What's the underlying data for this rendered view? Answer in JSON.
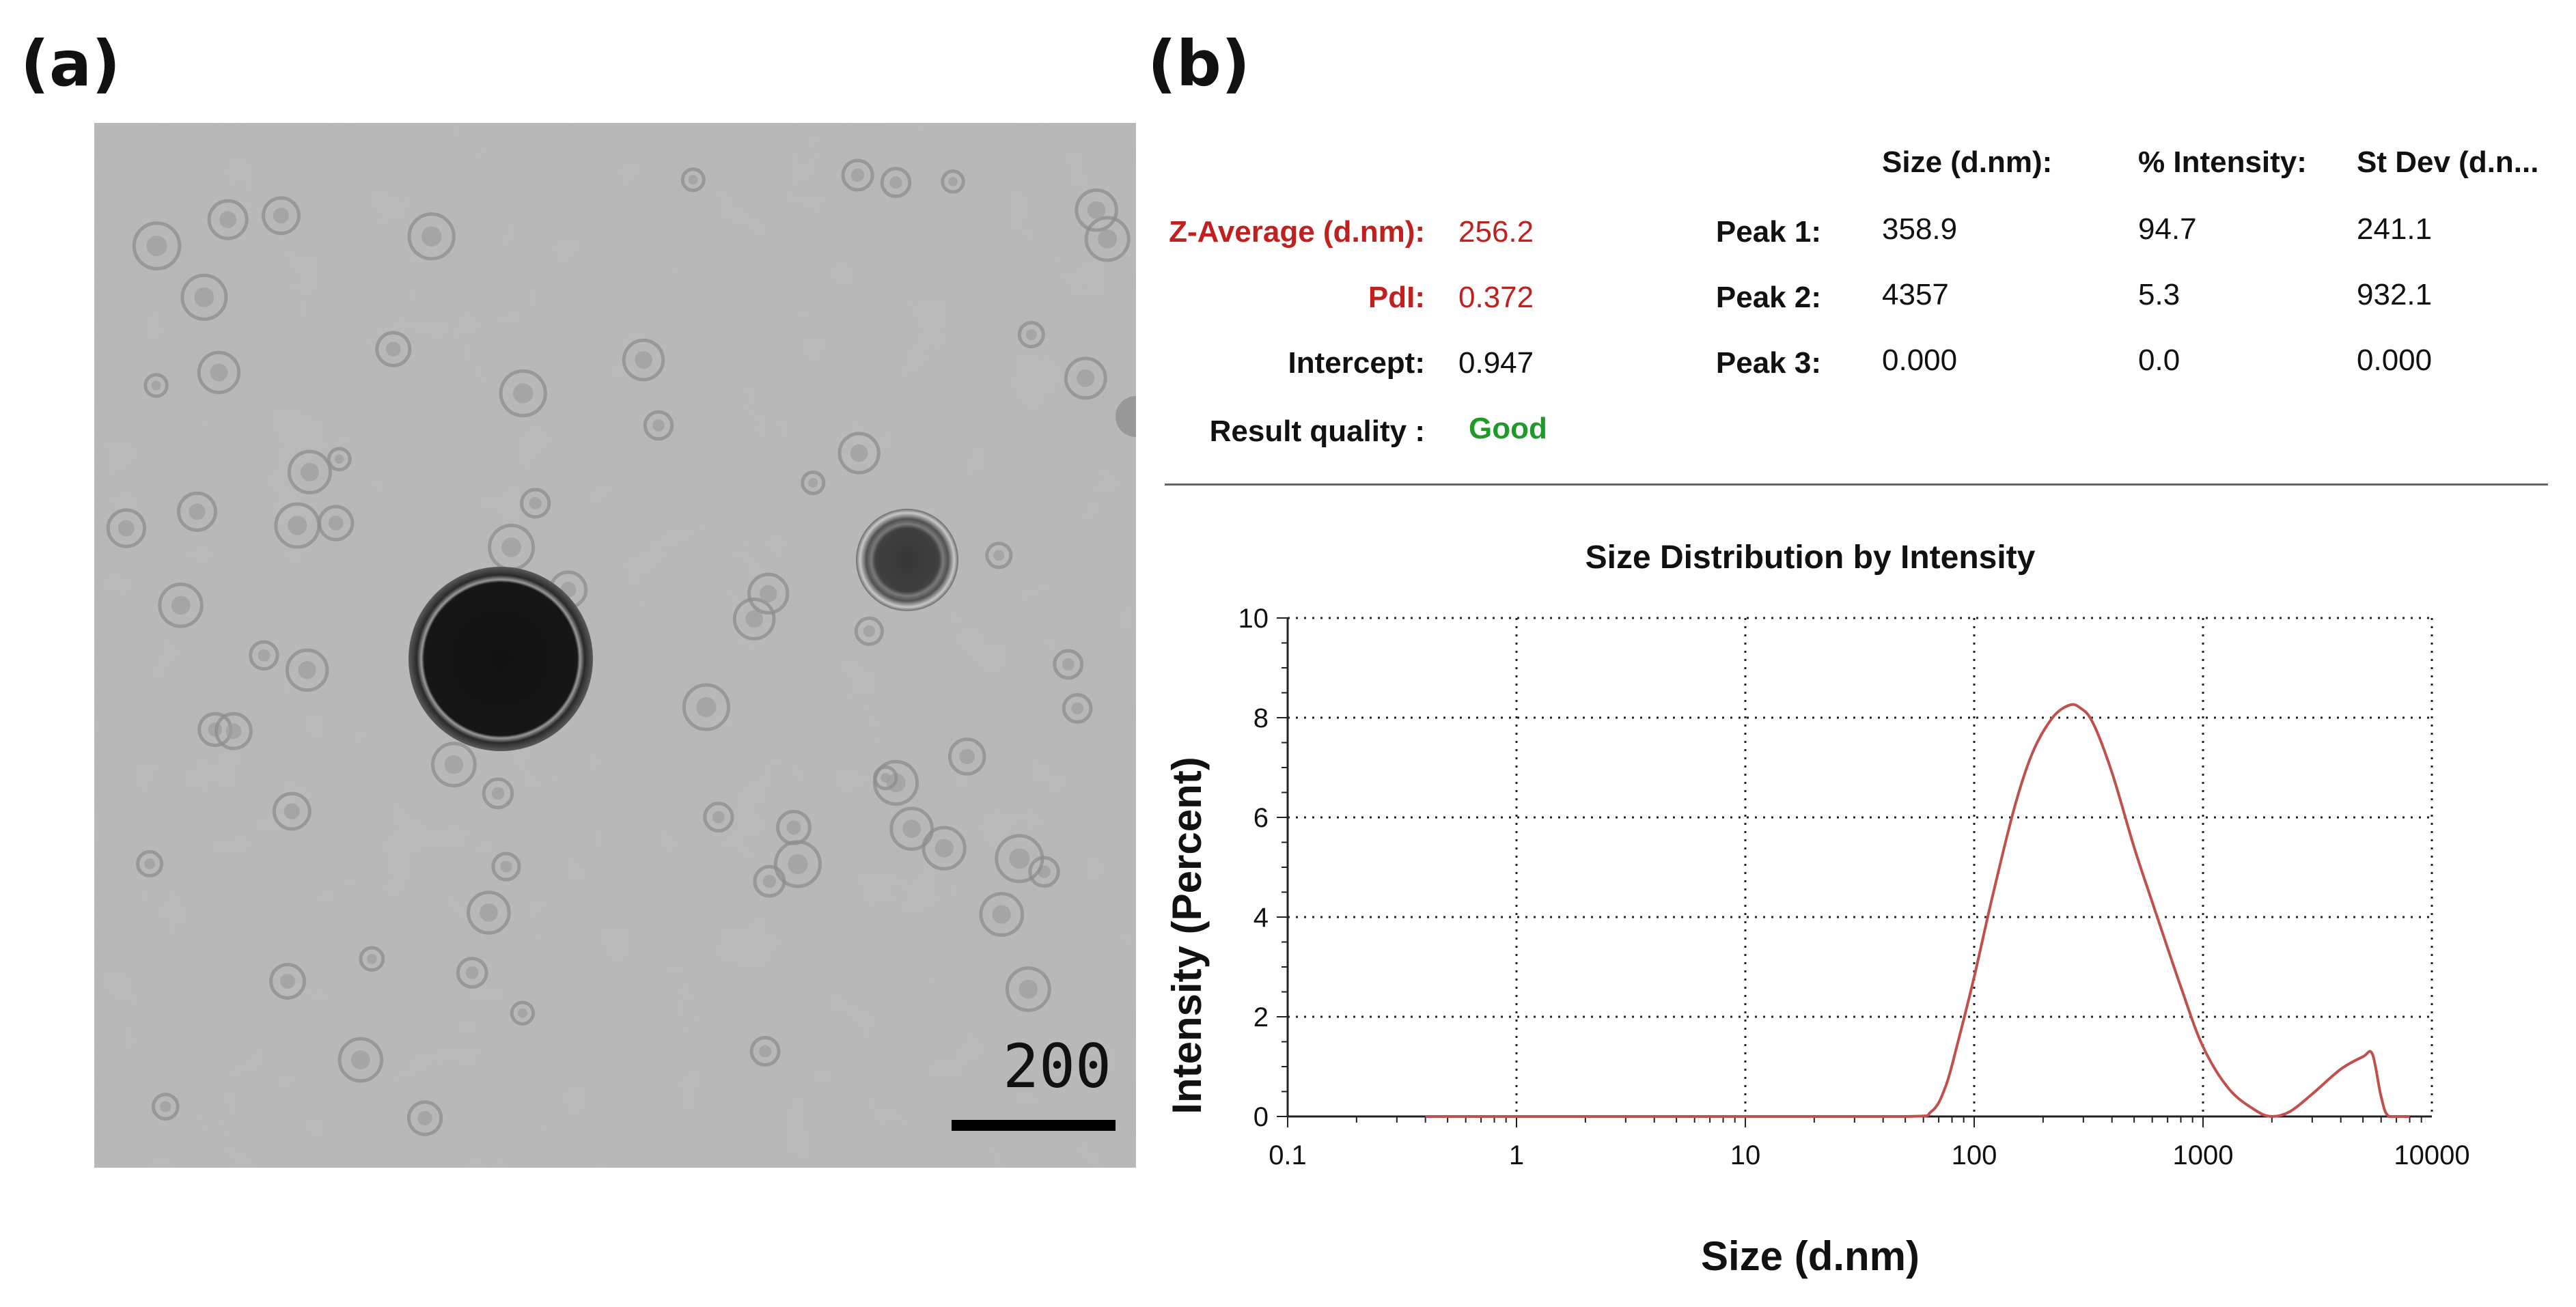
{
  "panels": {
    "a_label": "(a)",
    "b_label": "(b)"
  },
  "tem": {
    "scale_bar_label": "200 nm",
    "background_color": "#b8b8b8"
  },
  "summary": {
    "headers": {
      "size": "Size (d.nm):",
      "intensity": "% Intensity:",
      "stdev": "St Dev (d.n..."
    },
    "z_average": {
      "label": "Z-Average (d.nm):",
      "value": "256.2"
    },
    "pdi": {
      "label": "PdI:",
      "value": "0.372"
    },
    "intercept": {
      "label": "Intercept:",
      "value": "0.947"
    },
    "result_quality": {
      "label": "Result quality :",
      "value": "Good"
    },
    "peaks": [
      {
        "label": "Peak 1:",
        "size": "358.9",
        "intensity": "94.7",
        "stdev": "241.1"
      },
      {
        "label": "Peak 2:",
        "size": "4357",
        "intensity": "5.3",
        "stdev": "932.1"
      },
      {
        "label": "Peak 3:",
        "size": "0.000",
        "intensity": "0.0",
        "stdev": "0.000"
      }
    ],
    "colors": {
      "highlight": "#c0201e",
      "good": "#1f9a2a"
    }
  },
  "chart_data": {
    "type": "line",
    "title": "Size Distribution by Intensity",
    "xlabel": "Size (d.nm)",
    "ylabel": "Intensity (Percent)",
    "x_scale": "log",
    "xlim": [
      0.1,
      10000
    ],
    "ylim": [
      0,
      10
    ],
    "x_ticks": [
      0.1,
      1,
      10,
      100,
      1000,
      10000
    ],
    "x_tick_labels": [
      "0.1",
      "1",
      "10",
      "100",
      "1000",
      "10000"
    ],
    "y_ticks": [
      0,
      2,
      4,
      6,
      8,
      10
    ],
    "y_tick_labels": [
      "0",
      "2",
      "4",
      "6",
      "8",
      "10"
    ],
    "grid": true,
    "line_color": "#c0504d",
    "series": [
      {
        "x": [
          0.4,
          1,
          10,
          50,
          65,
          75,
          85,
          100,
          120,
          150,
          180,
          220,
          260,
          290,
          330,
          400,
          500,
          600,
          800,
          1000,
          1300,
          1700,
          2000,
          2400,
          3000,
          4000,
          5000,
          5500,
          6000,
          6500,
          8000
        ],
        "y": [
          0,
          0,
          0,
          0,
          0.1,
          0.6,
          1.5,
          2.8,
          4.4,
          6.2,
          7.3,
          8.0,
          8.25,
          8.2,
          7.9,
          6.9,
          5.4,
          4.3,
          2.6,
          1.4,
          0.55,
          0.12,
          0,
          0.1,
          0.45,
          0.95,
          1.2,
          1.25,
          0.4,
          0,
          0
        ]
      }
    ]
  }
}
